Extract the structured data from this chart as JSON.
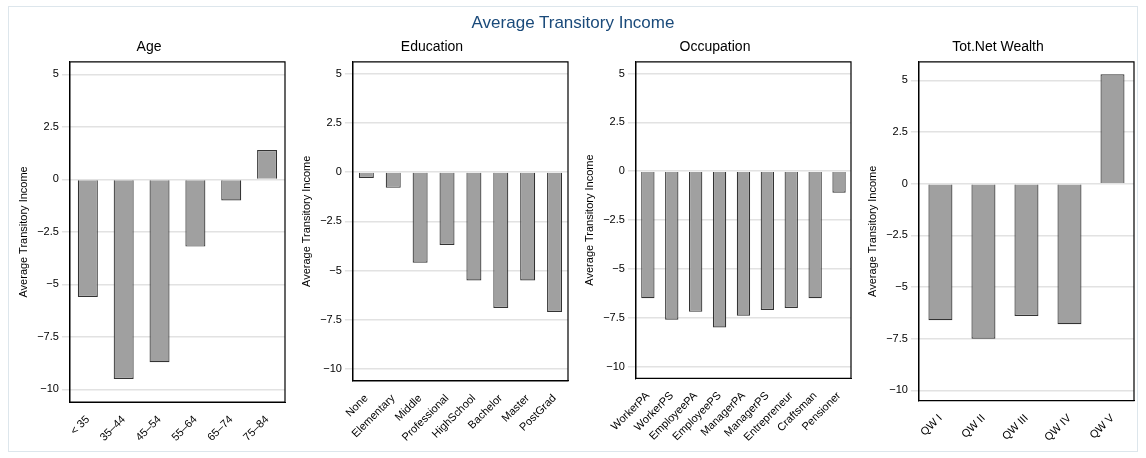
{
  "chart_data": [
    {
      "type": "bar",
      "title": "Age",
      "ylabel": "Average Transitory Income",
      "annotations": [
        "Average Transitory Income"
      ],
      "categories": [
        "< 35",
        "35–44",
        "45–54",
        "55–64",
        "65–74",
        "75–84"
      ],
      "values": [
        -5.6,
        -9.5,
        -8.7,
        -3.2,
        -1.0,
        1.4
      ],
      "color": "#a0a0a0",
      "ylim": [
        -10.6,
        5.6
      ],
      "yticks": [
        {
          "value": -10,
          "label": "−10"
        },
        {
          "value": -7.5,
          "label": "−7.5"
        },
        {
          "value": -5,
          "label": "−5"
        },
        {
          "value": -2.5,
          "label": "−2.5"
        },
        0,
        2.5,
        5
      ],
      "grid": "y"
    },
    {
      "type": "bar",
      "title": "Education",
      "ylabel": "Average Transitory Income",
      "categories": [
        "None",
        "Elementary",
        "Middle",
        "Professional",
        "HighSchool",
        "Bachelor",
        "Master",
        "PostGrad"
      ],
      "values": [
        -0.3,
        -0.8,
        -4.6,
        -3.7,
        -5.5,
        -6.9,
        -5.5,
        -7.1
      ],
      "color": "#a0a0a0",
      "ylim": [
        -10.6,
        5.6
      ],
      "yticks": [
        {
          "value": -10,
          "label": "−10"
        },
        {
          "value": -7.5,
          "label": "−7.5"
        },
        {
          "value": -5,
          "label": "−5"
        },
        {
          "value": -2.5,
          "label": "−2.5"
        },
        0,
        2.5,
        5
      ],
      "grid": "y"
    },
    {
      "type": "bar",
      "title": "Occupation",
      "ylabel": "Average Transitory Income",
      "categories": [
        "WorkerPA",
        "WorkerPS",
        "EmployeePA",
        "EmployeePS",
        "ManagerPA",
        "ManagerPS",
        "Entrepreneur",
        "Craftsman",
        "Pensioner"
      ],
      "values": [
        -6.5,
        -7.6,
        -7.2,
        -8.0,
        -7.4,
        -7.1,
        -7.0,
        -6.5,
        -1.1
      ],
      "color": "#a0a0a0",
      "ylim": [
        -10.6,
        5.6
      ],
      "yticks": [
        {
          "value": -10,
          "label": "−10"
        },
        {
          "value": -7.5,
          "label": "−7.5"
        },
        {
          "value": -5,
          "label": "−5"
        },
        {
          "value": -2.5,
          "label": "−2.5"
        },
        0,
        2.5,
        5
      ],
      "grid": "y"
    },
    {
      "type": "bar",
      "title": "Tot.Net Wealth",
      "ylabel": "Average Transitory Income",
      "categories": [
        "QW I",
        "QW II",
        "QW III",
        "QW IV",
        "QW V"
      ],
      "values": [
        -6.6,
        -7.5,
        -6.4,
        -6.8,
        5.3
      ],
      "color": "#a0a0a0",
      "ylim": [
        -10.5,
        5.9
      ],
      "yticks": [
        {
          "value": -10,
          "label": "−10"
        },
        {
          "value": -7.5,
          "label": "−7.5"
        },
        {
          "value": -5,
          "label": "−5"
        },
        {
          "value": -2.5,
          "label": "−2.5"
        },
        0,
        2.5,
        5
      ],
      "grid": "y"
    }
  ]
}
